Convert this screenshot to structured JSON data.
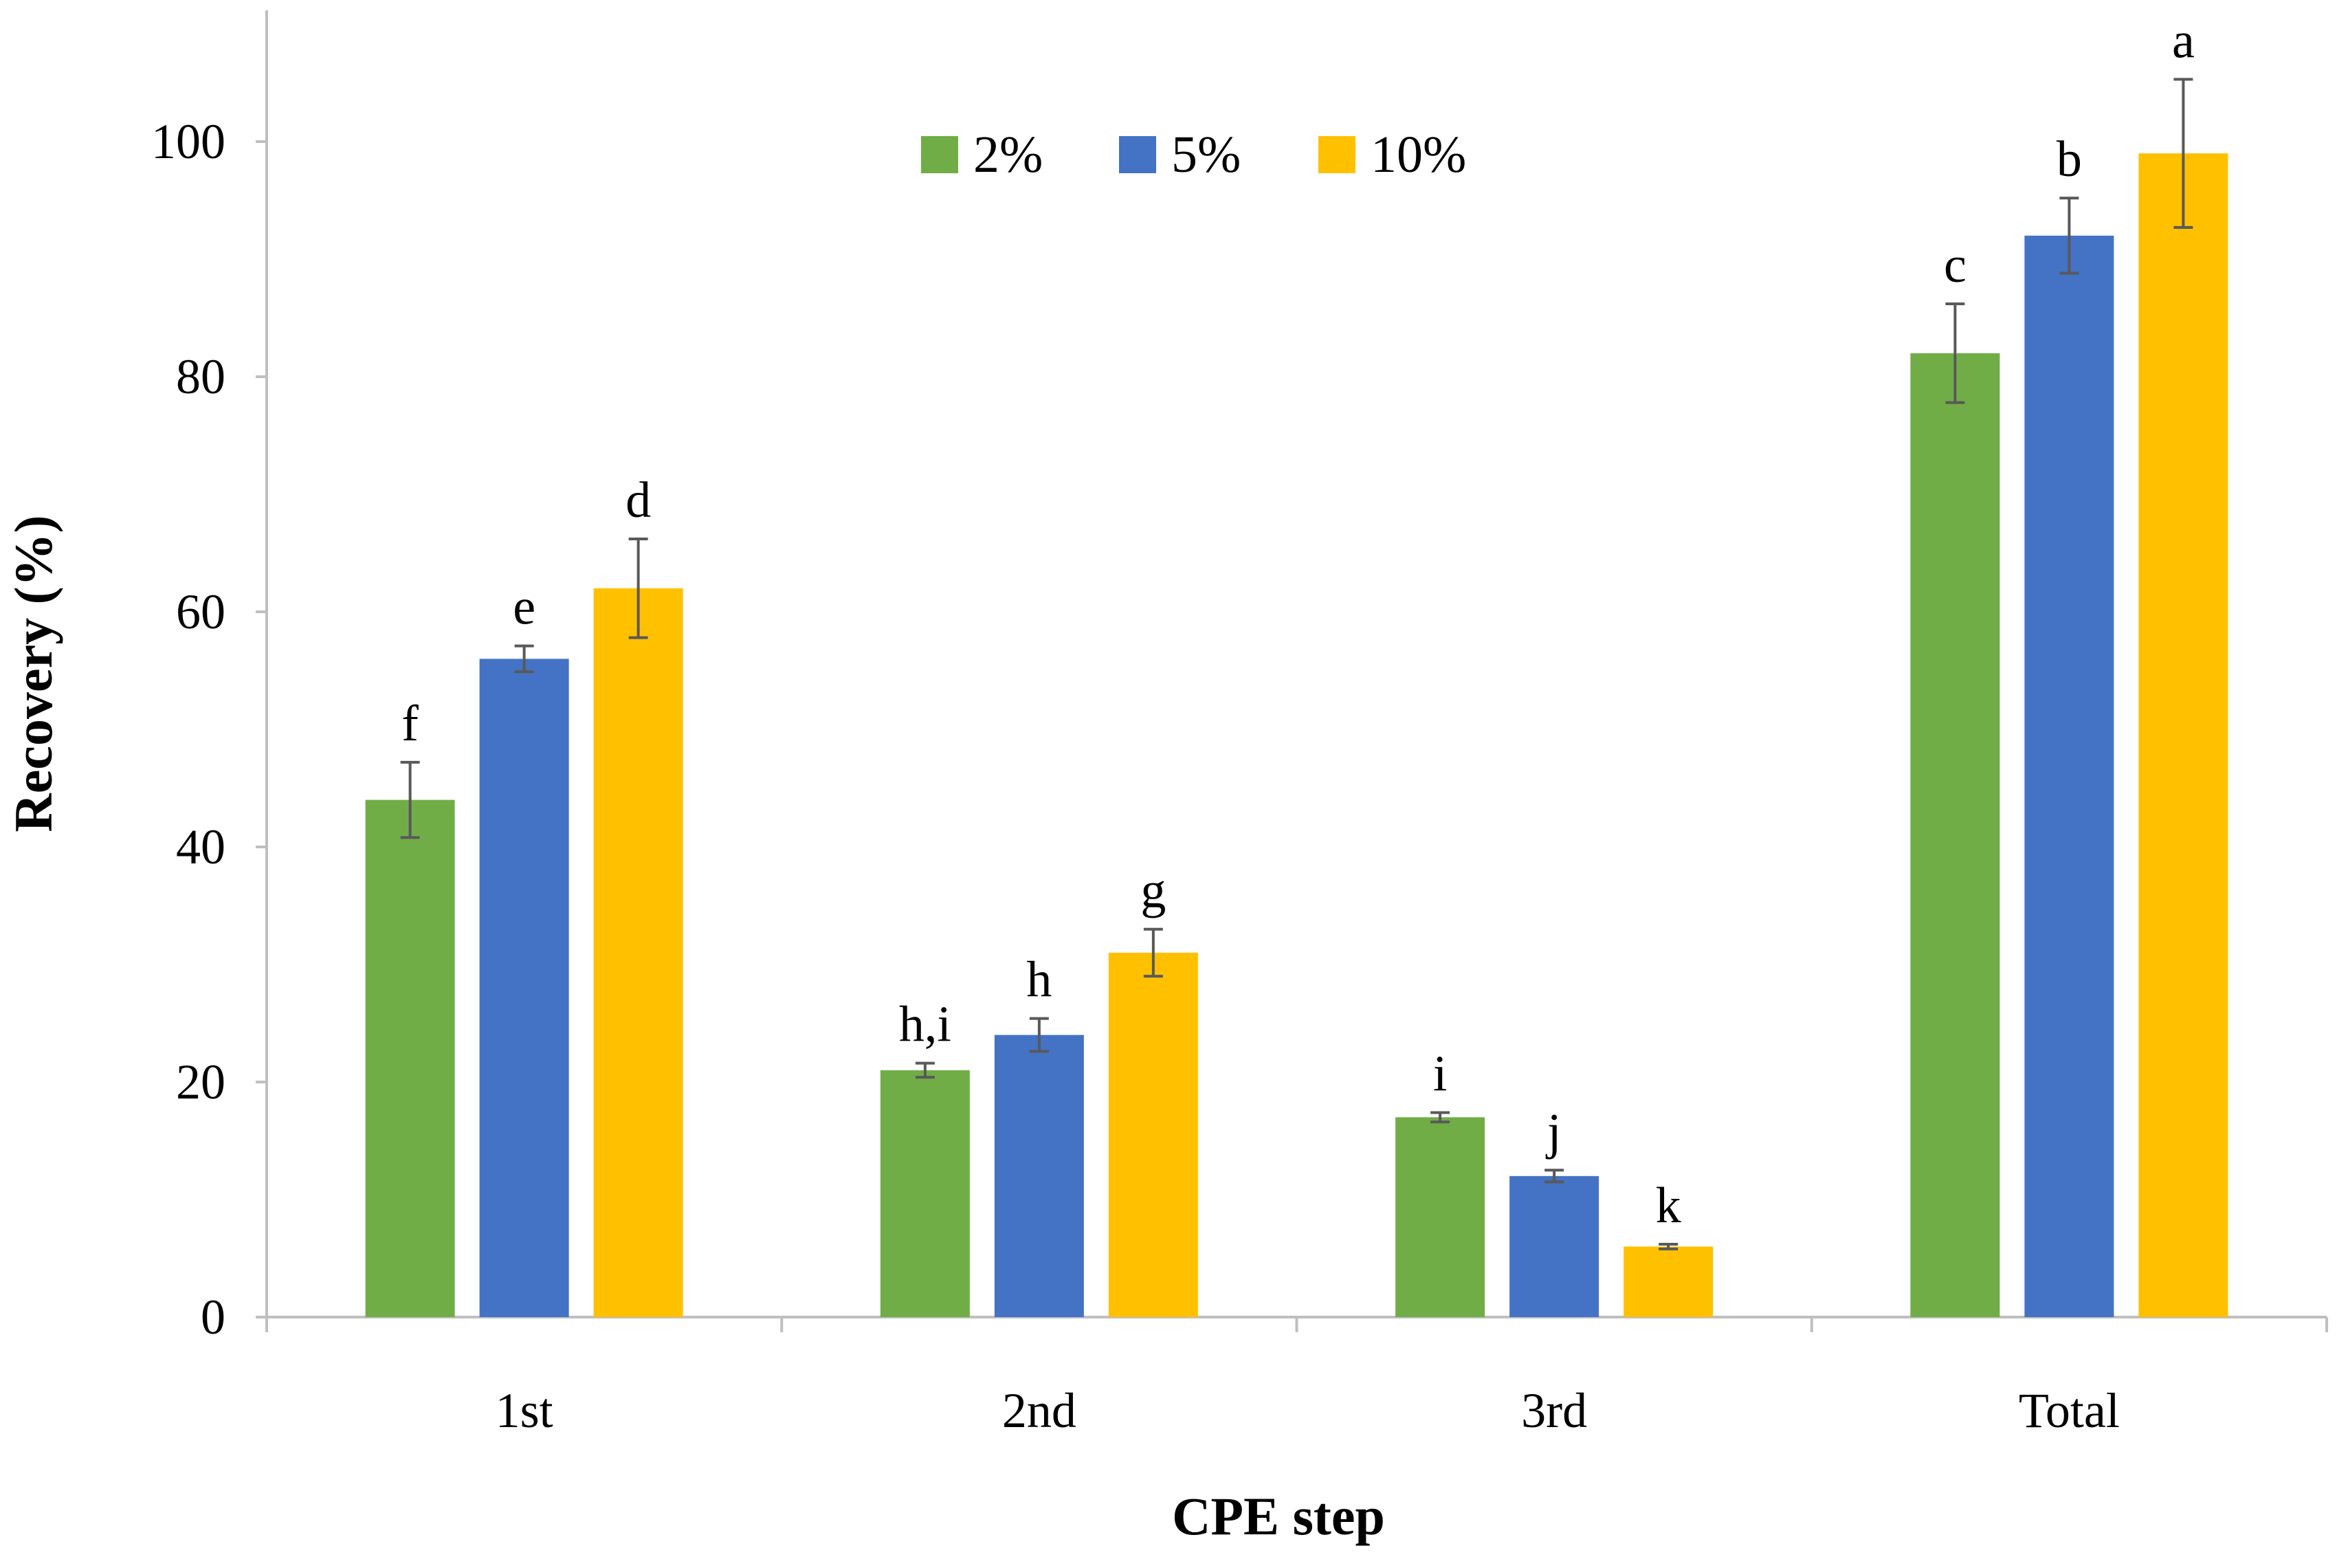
{
  "chart_data": {
    "type": "bar",
    "title": "",
    "xlabel": "CPE step",
    "ylabel": "Recovery (%)",
    "ylim": [
      0,
      110
    ],
    "yticks": [
      "0",
      "20",
      "40",
      "60",
      "80",
      "100"
    ],
    "categories": [
      "1st",
      "2nd",
      "3rd",
      "Total"
    ],
    "legend_position": "top-center",
    "series": [
      {
        "name": "2%",
        "color": "#70ad47",
        "values": [
          44,
          21,
          17,
          82
        ],
        "errors": [
          3.2,
          0.6,
          0.4,
          4.2
        ],
        "letters": [
          "f",
          "h,i",
          "i",
          "c"
        ]
      },
      {
        "name": "5%",
        "color": "#4472c4",
        "values": [
          56,
          24,
          12,
          92
        ],
        "errors": [
          1.1,
          1.4,
          0.5,
          3.2
        ],
        "letters": [
          "e",
          "h",
          "j",
          "b"
        ]
      },
      {
        "name": "10%",
        "color": "#ffc000",
        "values": [
          62,
          31,
          6,
          99
        ],
        "errors": [
          4.2,
          2.0,
          0.2,
          6.3
        ],
        "letters": [
          "d",
          "g",
          "k",
          "a"
        ]
      }
    ]
  }
}
